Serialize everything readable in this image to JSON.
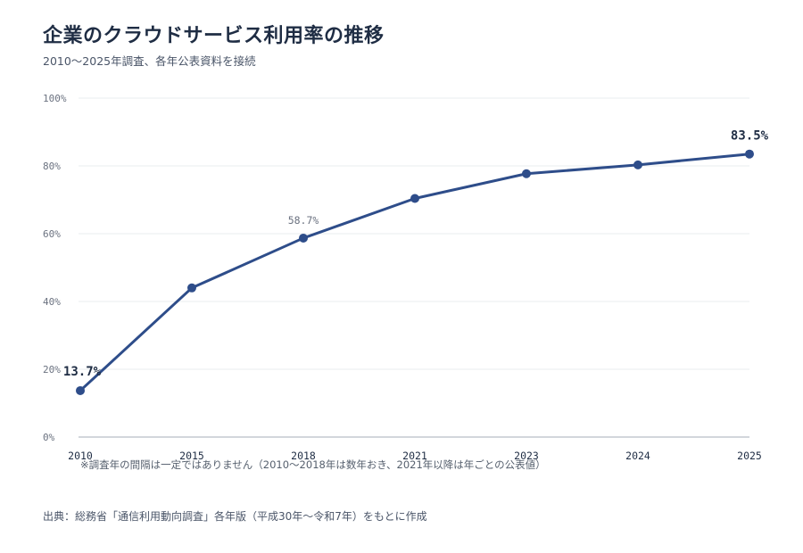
{
  "header": {
    "title": "企業のクラウドサービス利用率の推移",
    "subtitle": "2010〜2025年調査、各年公表資料を接続"
  },
  "chart_data": {
    "type": "line",
    "title": "企業のクラウドサービス利用率の推移",
    "subtitle": "2010〜2025年調査、各年公表資料を接続",
    "x": [
      "2010",
      "2015",
      "2018",
      "2021",
      "2023",
      "2024",
      "2025"
    ],
    "series": [
      {
        "values": [
          13.7,
          44.0,
          58.7,
          70.4,
          77.7,
          80.3,
          83.5
        ]
      }
    ],
    "ylim": [
      0,
      100
    ],
    "yticks": [
      "0%",
      "20%",
      "40%",
      "60%",
      "80%",
      "100%"
    ],
    "y_ticks_values": [
      0,
      20,
      40,
      60,
      80,
      100
    ],
    "data_labels": [
      {
        "x": "2010",
        "text": "13.7%",
        "emphasis": true
      },
      {
        "x": "2018",
        "text": "58.7%",
        "emphasis": false
      },
      {
        "x": "2025",
        "text": "83.5%",
        "emphasis": true
      }
    ],
    "grid": "horizontal",
    "legend": "none",
    "colors": {
      "line": "#2e4d8a",
      "grid": "#e9ecef",
      "axis": "#b8bec6"
    }
  },
  "footnote": "※調査年の間隔は一定ではありません（2010〜2018年は数年おき、2021年以降は年ごとの公表値）",
  "source": "出典：総務省「通信利用動向調査」各年版（平成30年〜令和7年）をもとに作成"
}
